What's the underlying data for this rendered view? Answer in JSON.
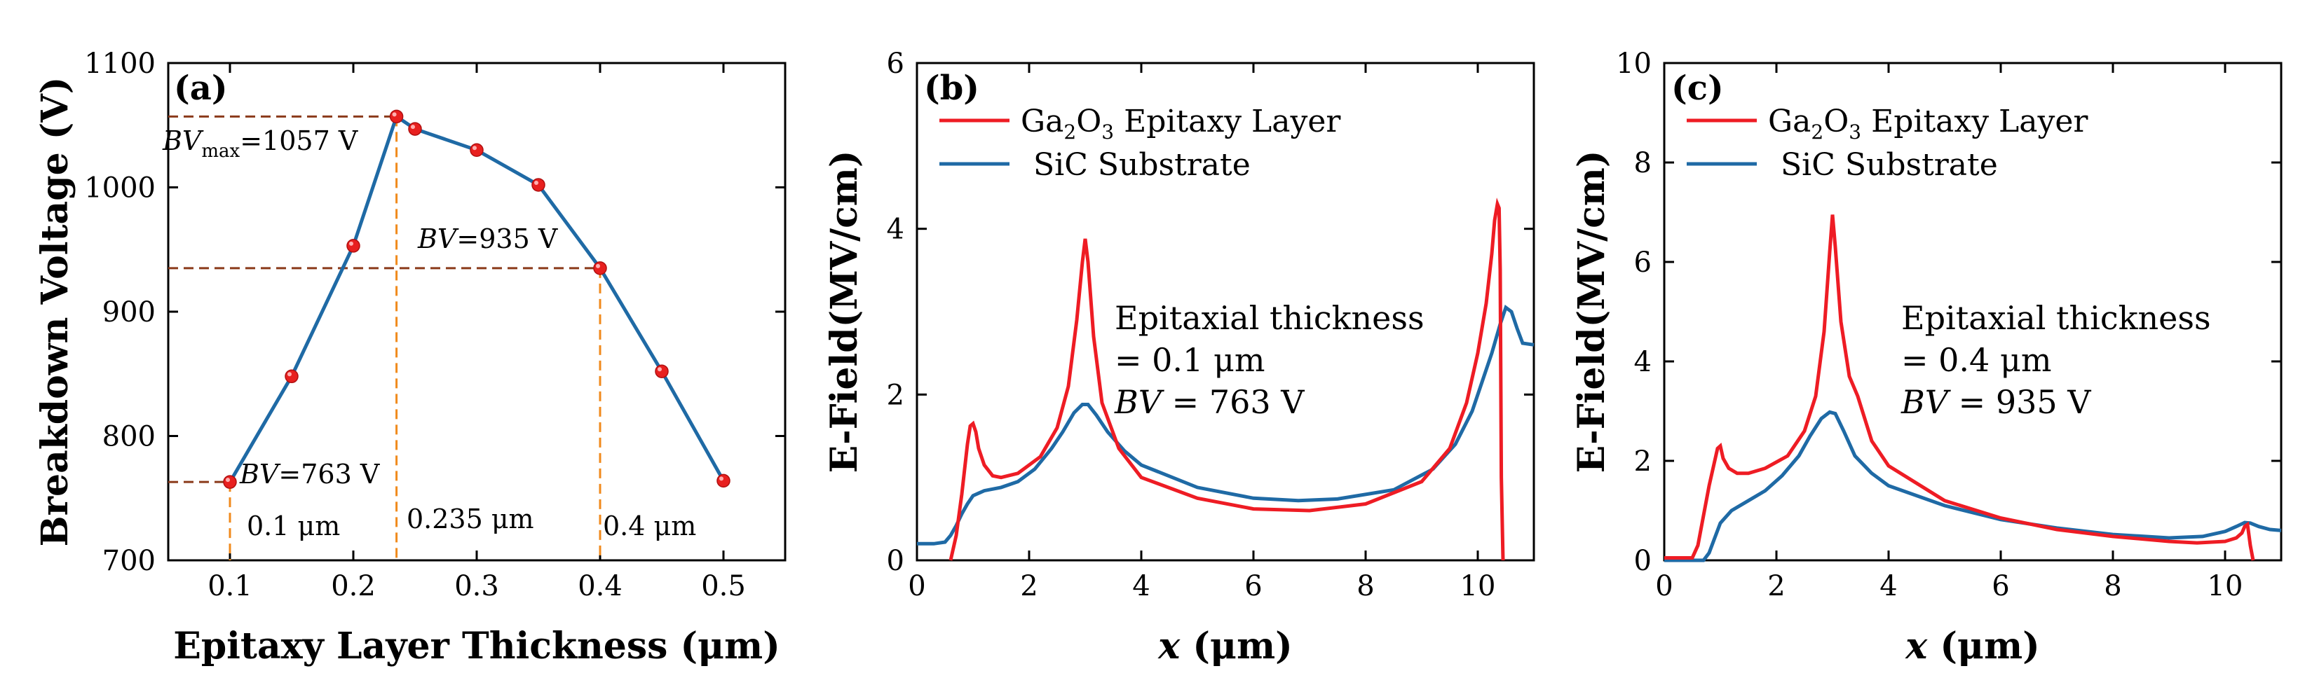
{
  "chart_data": [
    {
      "id": "a",
      "type": "line",
      "panel_label": "(a)",
      "xlabel": "Epitaxy Layer Thickness (μm)",
      "ylabel": "Breakdown Voltage (V)",
      "xlim": [
        0.05,
        0.55
      ],
      "ylim": [
        700,
        1100
      ],
      "xticks": [
        "0.1",
        "0.2",
        "0.3",
        "0.4",
        "0.5"
      ],
      "yticks": [
        "700",
        "800",
        "900",
        "1000",
        "1100"
      ],
      "series": [
        {
          "name": "Breakdown Voltage",
          "color": "#1f6aa5",
          "marker_color": "#e8201f",
          "x": [
            0.1,
            0.15,
            0.2,
            0.235,
            0.25,
            0.3,
            0.35,
            0.4,
            0.45,
            0.5
          ],
          "y": [
            763,
            848,
            953,
            1057,
            1047,
            1030,
            1002,
            935,
            852,
            764
          ]
        }
      ],
      "annotations": {
        "bvmax_prefix": "BV",
        "bvmax_sub": "max",
        "bvmax_value": "=1057 V",
        "bv935_prefix": "BV",
        "bv935_value": "=935 V",
        "bv763_prefix": "BV",
        "bv763_value": "=763 V",
        "t1": "0.1 μm",
        "t2": "0.235 μm",
        "t3": "0.4 μm"
      }
    },
    {
      "id": "b",
      "type": "line",
      "panel_label": "(b)",
      "xlabel_italic": "x",
      "xlabel_rest": " (μm)",
      "ylabel": "E-Field(MV/cm)",
      "xlim": [
        0,
        11
      ],
      "ylim": [
        0,
        6
      ],
      "xticks": [
        "0",
        "2",
        "4",
        "6",
        "8",
        "10"
      ],
      "yticks": [
        "0",
        "2",
        "4",
        "6"
      ],
      "legend": [
        {
          "pre": "Ga",
          "s1": "2",
          "mid": "O",
          "s2": "3",
          "post": " Epitaxy Layer",
          "color": "#ee1c24"
        },
        {
          "text": "SiC Substrate",
          "color": "#1f6aa5"
        }
      ],
      "text_block": {
        "line1": "Epitaxial thickness",
        "line2": "= 0.1 μm",
        "line3_italic": "BV",
        "line3_rest": " = 763 V"
      },
      "series": [
        {
          "name": "Ga2O3 Epitaxy Layer",
          "color": "#ee1c24",
          "x": [
            0.6,
            0.7,
            0.8,
            0.9,
            0.95,
            1.0,
            1.05,
            1.1,
            1.2,
            1.35,
            1.5,
            1.8,
            2.2,
            2.5,
            2.7,
            2.85,
            2.95,
            3.0,
            3.05,
            3.15,
            3.3,
            3.6,
            4.0,
            5.0,
            6.0,
            7.0,
            8.0,
            9.0,
            9.5,
            9.8,
            10.0,
            10.15,
            10.25,
            10.3,
            10.35,
            10.38,
            10.4,
            10.42,
            10.45
          ],
          "y": [
            0.0,
            0.3,
            0.8,
            1.4,
            1.62,
            1.65,
            1.55,
            1.35,
            1.15,
            1.02,
            1.0,
            1.05,
            1.25,
            1.6,
            2.1,
            2.9,
            3.6,
            3.88,
            3.6,
            2.7,
            1.9,
            1.35,
            1.0,
            0.75,
            0.62,
            0.6,
            0.68,
            0.95,
            1.35,
            1.9,
            2.5,
            3.1,
            3.7,
            4.1,
            4.3,
            4.25,
            3.5,
            1.0,
            0.0
          ]
        },
        {
          "name": "SiC Substrate",
          "color": "#1f6aa5",
          "x": [
            0,
            0.3,
            0.5,
            0.6,
            0.7,
            0.8,
            0.9,
            1.0,
            1.2,
            1.5,
            1.8,
            2.1,
            2.4,
            2.6,
            2.8,
            2.95,
            3.05,
            3.2,
            3.4,
            3.7,
            4.0,
            5.0,
            6.0,
            6.8,
            7.5,
            8.5,
            9.2,
            9.6,
            9.9,
            10.1,
            10.25,
            10.4,
            10.5,
            10.6,
            10.7,
            10.8,
            11.0
          ],
          "y": [
            0.2,
            0.2,
            0.22,
            0.3,
            0.42,
            0.56,
            0.68,
            0.78,
            0.84,
            0.88,
            0.95,
            1.1,
            1.35,
            1.55,
            1.78,
            1.88,
            1.88,
            1.75,
            1.55,
            1.32,
            1.15,
            0.88,
            0.75,
            0.72,
            0.74,
            0.85,
            1.1,
            1.4,
            1.8,
            2.2,
            2.5,
            2.85,
            3.05,
            3.0,
            2.8,
            2.62,
            2.6
          ]
        }
      ]
    },
    {
      "id": "c",
      "type": "line",
      "panel_label": "(c)",
      "xlabel_italic": "x",
      "xlabel_rest": " (μm)",
      "ylabel": "E-Field(MV/cm)",
      "xlim": [
        0,
        11
      ],
      "ylim": [
        0,
        10
      ],
      "xticks": [
        "0",
        "2",
        "4",
        "6",
        "8",
        "10"
      ],
      "yticks": [
        "0",
        "2",
        "4",
        "6",
        "8",
        "10"
      ],
      "legend": [
        {
          "pre": "Ga",
          "s1": "2",
          "mid": "O",
          "s2": "3",
          "post": " Epitaxy Layer",
          "color": "#ee1c24"
        },
        {
          "text": "SiC Substrate",
          "color": "#1f6aa5"
        }
      ],
      "text_block": {
        "line1": "Epitaxial thickness",
        "line2": "= 0.4 μm",
        "line3_italic": "BV",
        "line3_rest": " = 935 V"
      },
      "series": [
        {
          "name": "Ga2O3 Epitaxy Layer",
          "color": "#ee1c24",
          "x": [
            0,
            0.5,
            0.6,
            0.7,
            0.8,
            0.9,
            0.95,
            1.0,
            1.05,
            1.15,
            1.3,
            1.5,
            1.8,
            2.2,
            2.5,
            2.7,
            2.85,
            2.95,
            3.0,
            3.05,
            3.15,
            3.3,
            3.45,
            3.7,
            4.0,
            5.0,
            6.0,
            7.0,
            8.0,
            9.0,
            9.5,
            10.0,
            10.2,
            10.3,
            10.35,
            10.4,
            10.45,
            10.5
          ],
          "y": [
            0.05,
            0.05,
            0.3,
            0.9,
            1.5,
            2.0,
            2.25,
            2.3,
            2.05,
            1.85,
            1.75,
            1.75,
            1.85,
            2.1,
            2.6,
            3.3,
            4.6,
            6.2,
            6.95,
            6.3,
            4.8,
            3.7,
            3.3,
            2.4,
            1.9,
            1.2,
            0.85,
            0.62,
            0.48,
            0.38,
            0.35,
            0.38,
            0.45,
            0.55,
            0.68,
            0.72,
            0.3,
            0.0
          ]
        },
        {
          "name": "SiC Substrate",
          "color": "#1f6aa5",
          "x": [
            0,
            0.7,
            0.8,
            0.9,
            1.0,
            1.2,
            1.5,
            1.8,
            2.1,
            2.4,
            2.6,
            2.8,
            2.95,
            3.05,
            3.2,
            3.4,
            3.7,
            4.0,
            5.0,
            6.0,
            7.0,
            8.0,
            9.0,
            9.6,
            10.0,
            10.2,
            10.35,
            10.45,
            10.6,
            10.8,
            11.0
          ],
          "y": [
            0.0,
            0.0,
            0.15,
            0.45,
            0.75,
            1.0,
            1.2,
            1.4,
            1.7,
            2.1,
            2.5,
            2.85,
            2.98,
            2.95,
            2.6,
            2.1,
            1.75,
            1.5,
            1.1,
            0.82,
            0.65,
            0.52,
            0.45,
            0.48,
            0.58,
            0.68,
            0.76,
            0.75,
            0.68,
            0.62,
            0.6
          ]
        }
      ]
    }
  ]
}
